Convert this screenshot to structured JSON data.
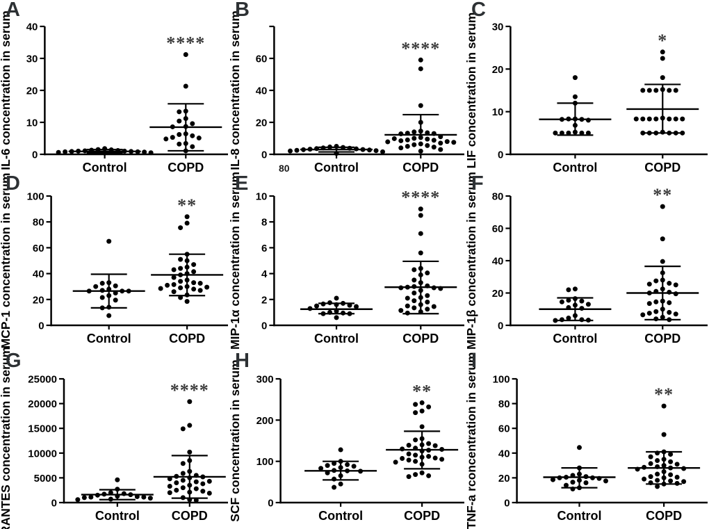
{
  "figure": {
    "background": "#ffffff",
    "point_color": "#000000",
    "axis_color": "#000000",
    "star_color": "#3b3b3b",
    "letter_color": "#2d3134"
  },
  "stray_label": "80",
  "chart_data": [
    {
      "type": "scatter",
      "letter": "A",
      "ylabel": "IL-6 concentration in serum",
      "categories": [
        "Control",
        "COPD"
      ],
      "ylim": [
        0,
        40
      ],
      "yticks": [
        0,
        10,
        20,
        30,
        40
      ],
      "significance": "****",
      "series": [
        {
          "name": "Control",
          "values": [
            1.8,
            1.5,
            1.4,
            1.3,
            1.2,
            1.1,
            1.0,
            1.0,
            0.9,
            0.9,
            0.8,
            0.8,
            0.7,
            0.6,
            0.5,
            0.4
          ],
          "mean": 0.9,
          "sd_low": 0.4,
          "sd_high": 1.5
        },
        {
          "name": "COPD",
          "values": [
            31.2,
            21.3,
            13.5,
            13.3,
            11.2,
            10.4,
            9.6,
            8.7,
            8.6,
            6.4,
            6.2,
            5.8,
            5.3,
            5.1,
            4.8,
            3.4,
            3.2,
            2.4,
            1.1
          ],
          "mean": 8.5,
          "sd_low": 1.1,
          "sd_high": 15.8
        }
      ]
    },
    {
      "type": "scatter",
      "letter": "B",
      "ylabel": "IL-8 concentration in serum",
      "categories": [
        "Control",
        "COPD"
      ],
      "ylim": [
        0,
        80
      ],
      "yticks": [
        0,
        20,
        40,
        60
      ],
      "significance": "****",
      "series": [
        {
          "name": "Control",
          "values": [
            5.0,
            4.6,
            4.3,
            4.0,
            3.8,
            3.6,
            3.4,
            3.2,
            3.0,
            2.9,
            2.7,
            2.5,
            2.3,
            2.1,
            1.6,
            0.6
          ],
          "mean": 3.0,
          "sd_low": 1.5,
          "sd_high": 4.4
        },
        {
          "name": "COPD",
          "values": [
            59,
            53.5,
            30.5,
            20,
            14.5,
            14,
            13.5,
            13.2,
            13,
            12.8,
            11,
            10.5,
            10,
            9.8,
            9.5,
            9,
            8.8,
            8.5,
            8,
            7.8,
            7.5,
            7,
            6.5,
            6,
            5.5,
            5,
            4.5,
            4,
            3,
            2
          ],
          "mean": 12.2,
          "sd_low": null,
          "sd_high": 24.8
        }
      ]
    },
    {
      "type": "scatter",
      "letter": "C",
      "ylabel": "LIF concentration in serum",
      "categories": [
        "Control",
        "COPD"
      ],
      "ylim": [
        0,
        30
      ],
      "yticks": [
        0,
        10,
        20,
        30
      ],
      "significance": "*",
      "series": [
        {
          "name": "Control",
          "values": [
            18,
            13.5,
            12,
            8.3,
            8.3,
            8.2,
            8.2,
            8.0,
            6.8,
            5.2,
            5.0,
            5.0,
            5.0,
            5.0,
            5.0
          ],
          "mean": 8.2,
          "sd_low": 4.5,
          "sd_high": 12.0
        },
        {
          "name": "COPD",
          "values": [
            24,
            22.5,
            18,
            15.2,
            15,
            15,
            15,
            15,
            15,
            8.5,
            8.3,
            8.3,
            8.3,
            8.3,
            8.3,
            8.3,
            8.3,
            5.2,
            5,
            5,
            5,
            5,
            5,
            5
          ],
          "mean": 10.6,
          "sd_low": 5.0,
          "sd_high": 16.4
        }
      ]
    },
    {
      "type": "scatter",
      "letter": "D",
      "ylabel": "MCP-1 concentration in serum",
      "categories": [
        "Control",
        "COPD"
      ],
      "ylim": [
        0,
        100
      ],
      "yticks": [
        0,
        20,
        40,
        60,
        80,
        100
      ],
      "significance": "**",
      "series": [
        {
          "name": "Control",
          "values": [
            65,
            33,
            32.5,
            30.5,
            30,
            28,
            27,
            26.5,
            26.5,
            26.5,
            25,
            23,
            21.5,
            19.5,
            14,
            13.5,
            7.5
          ],
          "mean": 26.5,
          "sd_low": 13.5,
          "sd_high": 39.5
        },
        {
          "name": "COPD",
          "values": [
            84,
            79,
            75.5,
            55,
            51,
            50,
            47,
            45,
            44,
            43,
            41.5,
            40,
            39,
            37,
            35,
            34,
            33,
            32.5,
            31.5,
            31,
            30,
            29.5,
            29,
            28.5,
            28,
            27,
            26,
            23.5,
            21.5,
            18.5
          ],
          "mean": 39,
          "sd_low": 23,
          "sd_high": 55
        }
      ]
    },
    {
      "type": "scatter",
      "letter": "E",
      "ylabel": "MIP-1α concentration in serum",
      "categories": [
        "Control",
        "COPD"
      ],
      "ylim": [
        0,
        10
      ],
      "yticks": [
        0,
        2,
        4,
        6,
        8,
        10
      ],
      "significance": "****",
      "series": [
        {
          "name": "Control",
          "values": [
            2.1,
            1.75,
            1.7,
            1.65,
            1.6,
            1.55,
            1.5,
            1.45,
            1.3,
            1.1,
            1.0,
            0.95,
            0.9,
            0.9,
            0.6
          ],
          "mean": 1.25,
          "sd_low": 0.9,
          "sd_high": 1.7
        },
        {
          "name": "COPD",
          "values": [
            9.0,
            8.5,
            7.1,
            5.6,
            4.4,
            4.3,
            4.05,
            3.9,
            3.5,
            3.3,
            3.05,
            3.0,
            2.95,
            2.9,
            2.9,
            2.85,
            2.7,
            2.5,
            2.3,
            2.15,
            2.1,
            1.9,
            1.8,
            1.6,
            1.5,
            1.45,
            1.35,
            1.25,
            1.15,
            1.05,
            0.95
          ],
          "mean": 2.95,
          "sd_low": 0.9,
          "sd_high": 4.95
        }
      ]
    },
    {
      "type": "scatter",
      "letter": "F",
      "ylabel": "MIP-1β concentration in serum",
      "categories": [
        "Control",
        "COPD"
      ],
      "ylim": [
        0,
        80
      ],
      "yticks": [
        0,
        20,
        40,
        60,
        80
      ],
      "significance": "**",
      "series": [
        {
          "name": "Control",
          "values": [
            22.5,
            22,
            16.5,
            15.5,
            15,
            14.5,
            13,
            12.5,
            11,
            10.5,
            6,
            4.5,
            3.5,
            3.5,
            3.2,
            3
          ],
          "mean": 10,
          "sd_low": 3,
          "sd_high": 17
        },
        {
          "name": "COPD",
          "values": [
            73.5,
            53.5,
            39.5,
            32.5,
            28,
            27.5,
            26,
            25.5,
            25,
            22.5,
            21,
            20.5,
            20,
            19.5,
            15,
            14.5,
            14,
            13.5,
            10,
            8.5,
            8,
            7.5,
            7,
            6.5,
            5,
            4,
            3.5
          ],
          "mean": 20,
          "sd_low": 3.5,
          "sd_high": 36.5
        }
      ]
    },
    {
      "type": "scatter",
      "letter": "G",
      "ylabel": "RANTES concentration in serum",
      "categories": [
        "Control",
        "COPD"
      ],
      "ylim": [
        0,
        25000
      ],
      "yticks": [
        0,
        5000,
        10000,
        15000,
        20000,
        25000
      ],
      "significance": "****",
      "series": [
        {
          "name": "Control",
          "values": [
            4600,
            2700,
            2000,
            1800,
            1700,
            1600,
            1500,
            1300,
            1200,
            1100,
            1100,
            1000,
            900,
            700,
            600
          ],
          "mean": 1600,
          "sd_low": 600,
          "sd_high": 2600
        },
        {
          "name": "COPD",
          "values": [
            20400,
            15600,
            14900,
            10200,
            8500,
            7900,
            6300,
            5900,
            5500,
            5300,
            5200,
            5000,
            4800,
            4500,
            4300,
            4200,
            4000,
            3800,
            3500,
            3300,
            3000,
            2800,
            2500,
            2300,
            2100,
            2000,
            1900,
            1000,
            600,
            500
          ],
          "mean": 5200,
          "sd_low": 900,
          "sd_high": 9500
        }
      ]
    },
    {
      "type": "scatter",
      "letter": "H",
      "ylabel": "SCF concentration in serum",
      "categories": [
        "Control",
        "COPD"
      ],
      "ylim": [
        0,
        300
      ],
      "yticks": [
        0,
        100,
        200,
        300
      ],
      "significance": "**",
      "series": [
        {
          "name": "Control",
          "values": [
            128,
            100,
            95,
            92,
            90,
            88,
            85,
            83,
            78,
            77,
            76,
            72,
            65,
            57,
            45,
            37
          ],
          "mean": 77,
          "sd_low": 55,
          "sd_high": 100
        },
        {
          "name": "COPD",
          "values": [
            242,
            238,
            232,
            222,
            218,
            184,
            155,
            152,
            143,
            140,
            139,
            138,
            132,
            130,
            129,
            127,
            125,
            118,
            115,
            112,
            110,
            108,
            107,
            105,
            103,
            100,
            98,
            93,
            72,
            68,
            65,
            63
          ],
          "mean": 128,
          "sd_low": 82,
          "sd_high": 173
        }
      ]
    },
    {
      "type": "scatter",
      "letter": "I",
      "ylabel": "TNF-a rconcentration in serum",
      "categories": [
        "Control",
        "COPD"
      ],
      "ylim": [
        0,
        100
      ],
      "yticks": [
        0,
        20,
        40,
        60,
        80,
        100
      ],
      "significance": "**",
      "series": [
        {
          "name": "Control",
          "values": [
            44.5,
            28,
            23,
            22,
            21,
            20.5,
            20,
            20,
            19.5,
            18.5,
            18,
            17.5,
            16.5,
            16,
            14,
            12,
            11
          ],
          "mean": 20.5,
          "sd_low": 12,
          "sd_high": 28
        },
        {
          "name": "COPD",
          "values": [
            78,
            55,
            41,
            40,
            39,
            37,
            35,
            34,
            33,
            31.5,
            31,
            30,
            29,
            28.5,
            28,
            27.5,
            27,
            25,
            23,
            22.5,
            21,
            20.5,
            20,
            19,
            18,
            17.5,
            17,
            16,
            15.5,
            15,
            13
          ],
          "mean": 28,
          "sd_low": 15,
          "sd_high": 41
        }
      ]
    }
  ]
}
